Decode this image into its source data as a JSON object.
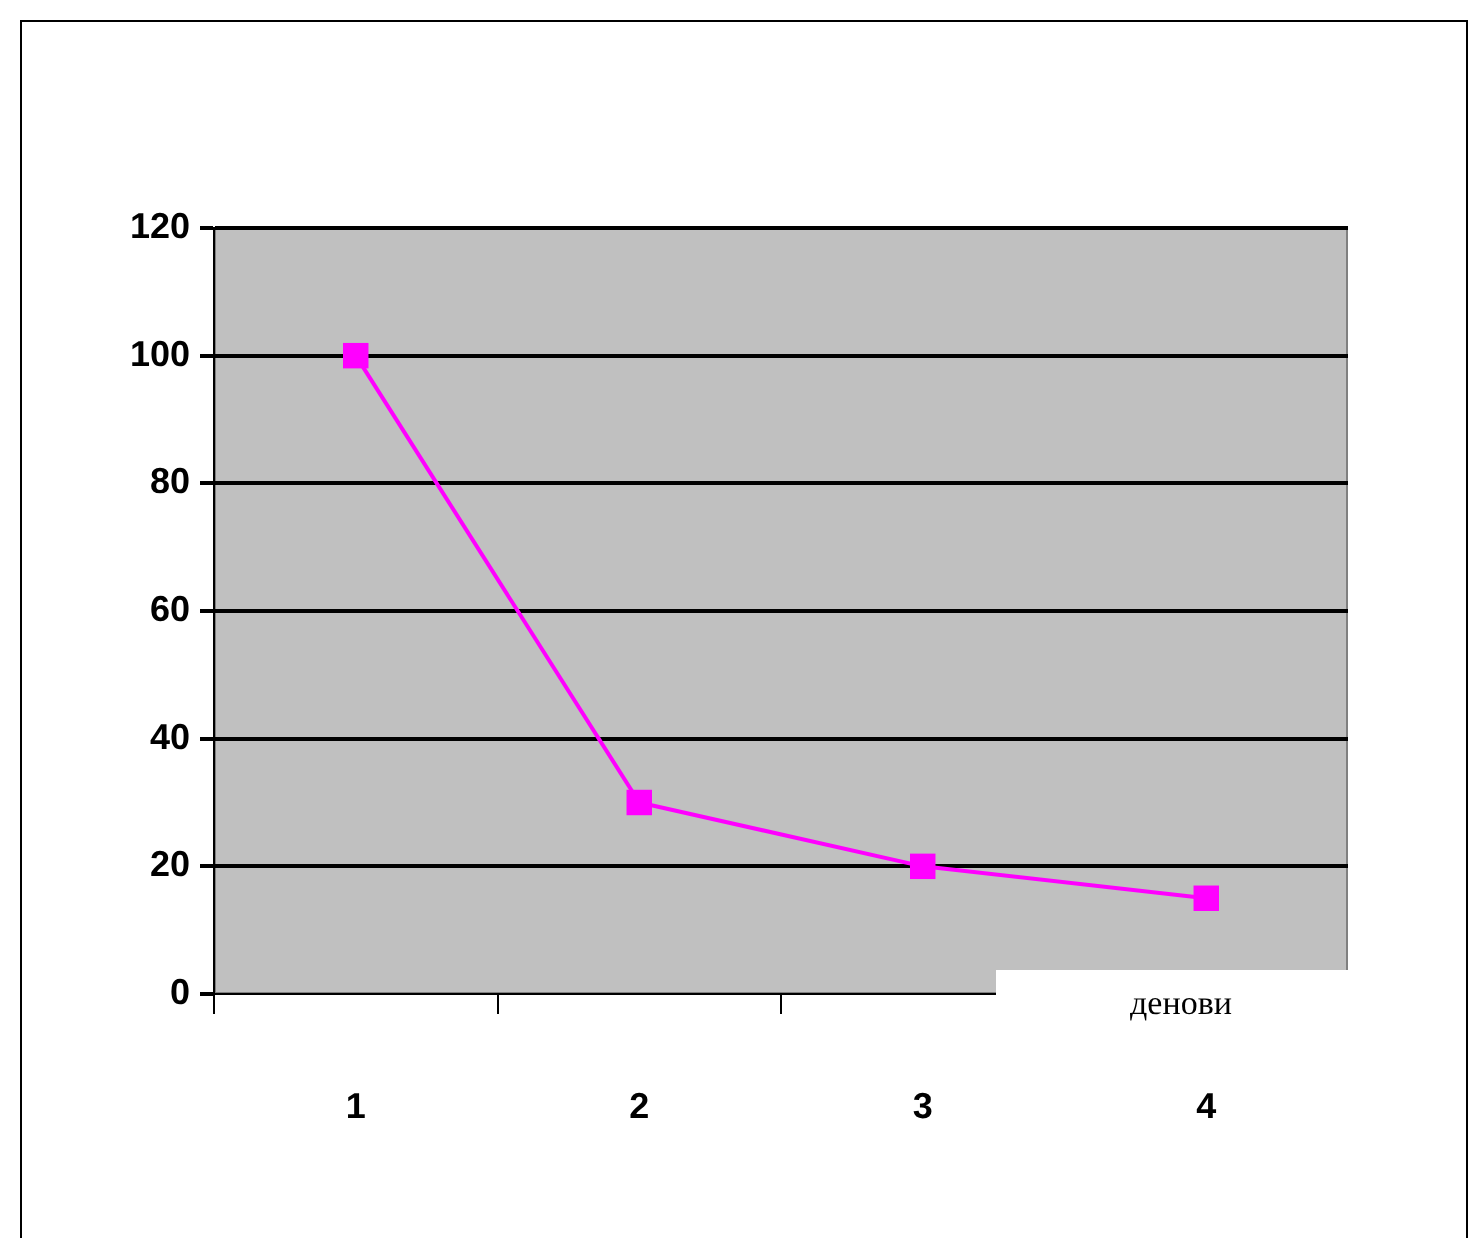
{
  "chart_data": {
    "type": "line",
    "xlabel": "денови",
    "categories": [
      "1",
      "2",
      "3",
      "4"
    ],
    "series": [
      {
        "color": "#ff00ff",
        "values": [
          100,
          30,
          20,
          15
        ]
      }
    ],
    "ylim": [
      0,
      120
    ],
    "yticks": [
      0,
      20,
      40,
      60,
      80,
      100,
      120
    ],
    "grid": "y",
    "legend": false,
    "marker": "square",
    "line_style": "solid"
  }
}
